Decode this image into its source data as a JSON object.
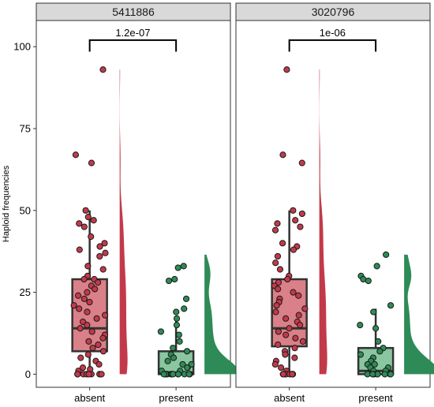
{
  "chart_data": {
    "type": "raincloud-boxplot",
    "ylabel": "Haploid frequencies",
    "ylim": [
      -4,
      108
    ],
    "yticks": [
      0,
      25,
      50,
      75,
      100
    ],
    "categories": [
      "absent",
      "present"
    ],
    "colors": {
      "absent_fill": "#d98088",
      "absent_point": "#c23a4a",
      "absent_violin": "#c23a4a",
      "present_fill": "#8ac6a0",
      "present_point": "#2e8b57",
      "present_violin": "#2e8b57"
    },
    "panels": [
      {
        "strip_label": "5411886",
        "p_value": "1.2e-07",
        "groups": [
          {
            "category": "absent",
            "box": {
              "lower_whisker": 0,
              "q1": 7,
              "median": 14,
              "q3": 29,
              "upper_whisker": 50
            },
            "points": [
              93,
              67,
              64.5,
              50,
              48,
              47,
              46,
              45,
              42,
              40,
              39,
              38,
              37,
              36,
              33,
              32,
              30,
              29,
              29,
              28,
              27,
              26,
              25,
              24,
              23,
              22,
              21,
              20,
              19,
              18,
              17,
              16,
              15,
              14,
              13,
              12,
              11,
              10,
              9,
              8,
              7,
              6,
              5,
              4,
              3,
              2,
              1.5,
              1,
              0,
              0,
              0,
              0,
              0,
              0,
              0,
              0
            ],
            "violin_max": 93
          },
          {
            "category": "present",
            "box": {
              "lower_whisker": 0,
              "q1": 0,
              "median": 0.5,
              "q3": 7,
              "upper_whisker": 17
            },
            "points": [
              33,
              32.5,
              29,
              28.5,
              23,
              20,
              19,
              17,
              15,
              13,
              12,
              10,
              8,
              7,
              6,
              5,
              4,
              3,
              3,
              2,
              2,
              1,
              1,
              0,
              0,
              0,
              0,
              0,
              0,
              0,
              0,
              0,
              0,
              0,
              0
            ],
            "violin_max": 36.5
          }
        ]
      },
      {
        "strip_label": "3020796",
        "p_value": "1e-06",
        "groups": [
          {
            "category": "absent",
            "box": {
              "lower_whisker": 0,
              "q1": 8.5,
              "median": 14,
              "q3": 29,
              "upper_whisker": 50
            },
            "points": [
              93,
              67,
              64.5,
              50,
              49,
              47,
              46,
              45,
              44,
              40,
              39,
              38,
              36,
              34,
              32,
              30,
              29,
              28,
              27,
              26,
              25,
              24,
              23,
              22,
              21,
              20,
              19,
              18,
              17,
              16,
              15,
              14,
              13,
              12,
              11,
              10,
              9,
              8,
              7,
              6,
              5,
              4,
              3,
              2,
              1,
              0,
              0,
              0,
              0,
              0,
              0,
              0,
              0
            ],
            "violin_max": 93
          },
          {
            "category": "present",
            "box": {
              "lower_whisker": 0,
              "q1": 0,
              "median": 1,
              "q3": 8,
              "upper_whisker": 20
            },
            "points": [
              36.5,
              33,
              30,
              29,
              28.5,
              21,
              19,
              15,
              14,
              10,
              8,
              7,
              6,
              5,
              4,
              3,
              3,
              2,
              2,
              1,
              1,
              0,
              0,
              0,
              0,
              0,
              0,
              0,
              0,
              0,
              0
            ],
            "violin_max": 36.5
          }
        ]
      }
    ]
  }
}
